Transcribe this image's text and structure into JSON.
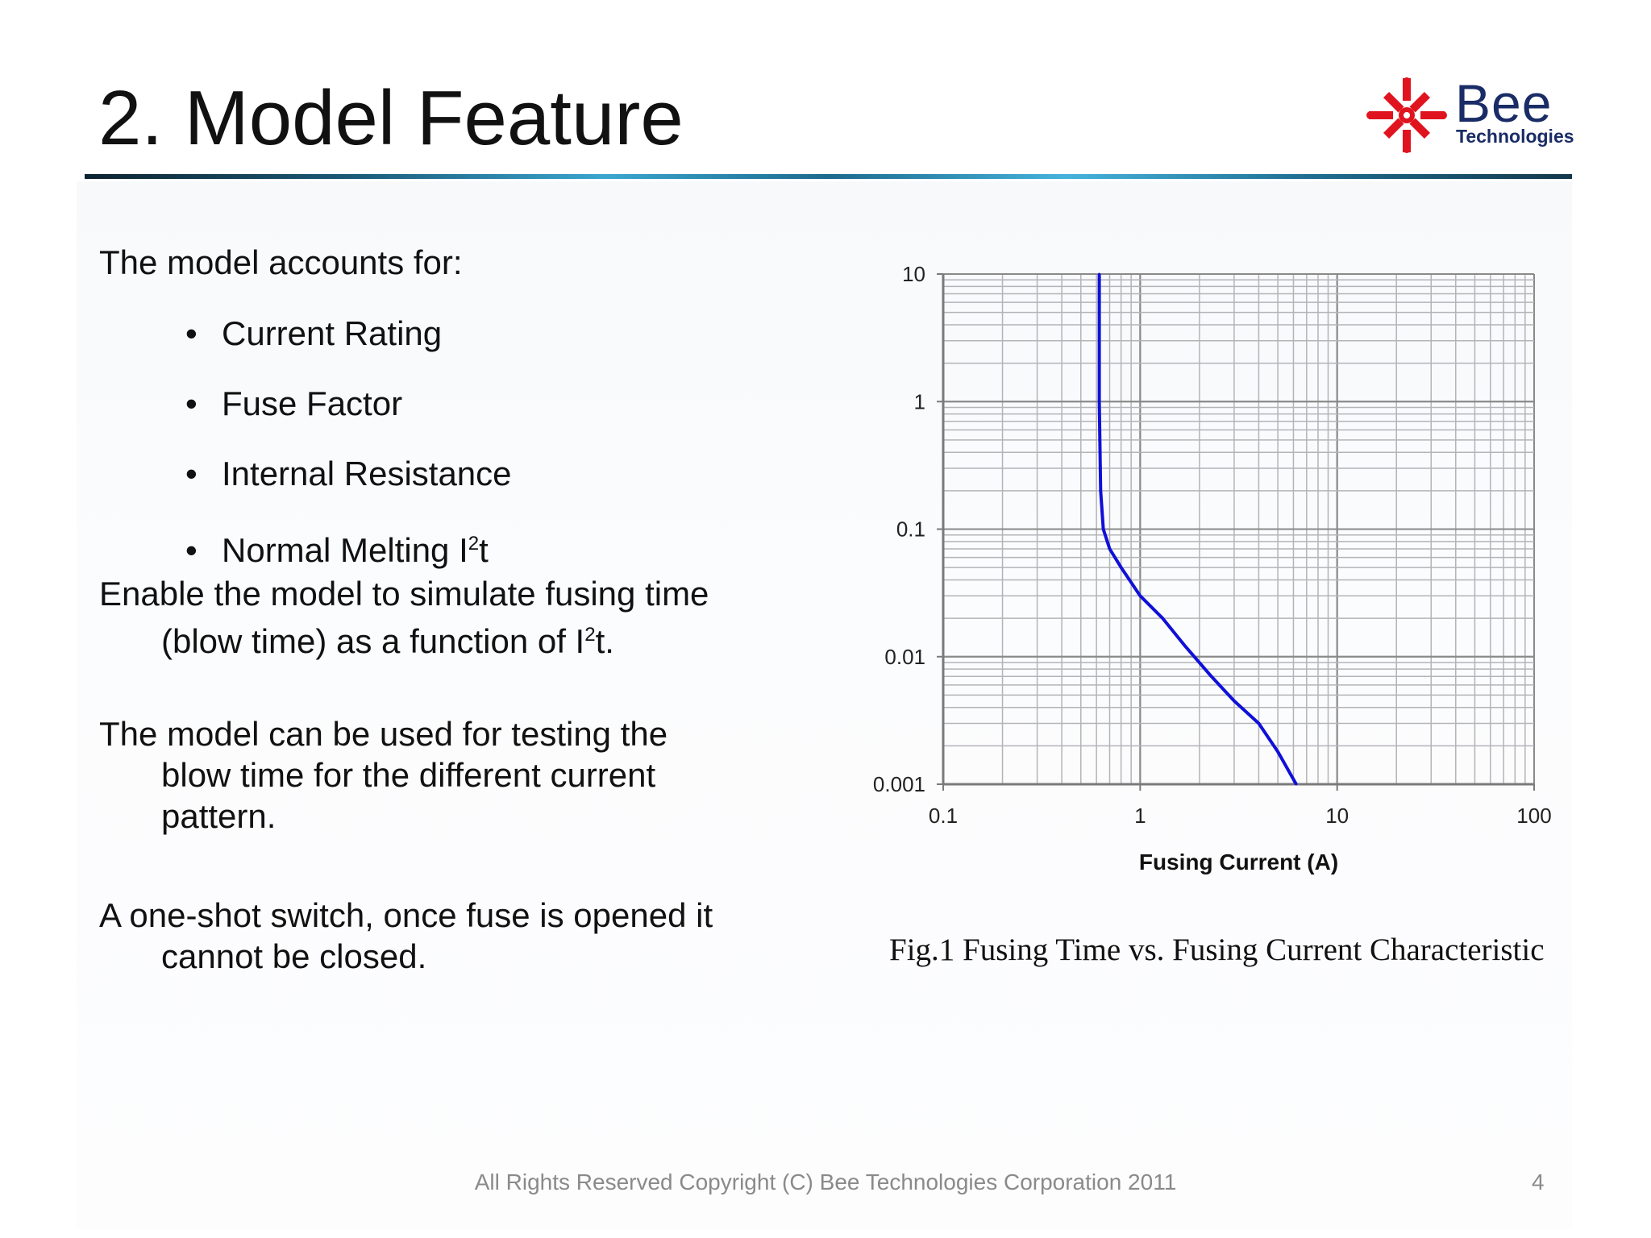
{
  "slide": {
    "title": "2. Model Feature",
    "logo": {
      "word": "Bee",
      "sub": "Technologies",
      "mark_color": "#e0141e",
      "text_color": "#1a2c66"
    },
    "intro": "The model accounts for:",
    "bullets": [
      "Current Rating",
      "Fuse Factor",
      "Internal Resistance",
      "Normal Melting I"
    ],
    "bullet_char": "•",
    "bullet_sup": "2",
    "bullet_tail": "t",
    "p1": {
      "line1": "Enable the model to simulate fusing time",
      "line2_pre": "(blow time) as a function of I",
      "sup": "2",
      "line2_post": "t."
    },
    "p2": {
      "line1": "The model can be used for testing the",
      "line2": "blow time for the different current",
      "line3": "pattern."
    },
    "p3": {
      "line1": "A one-shot switch, once fuse is opened it",
      "line2": "cannot be closed."
    },
    "caption": "Fig.1 Fusing Time vs. Fusing Current Characteristic",
    "footer": "All Rights Reserved Copyright (C) Bee Technologies Corporation 2011",
    "page": "4"
  },
  "chart_data": {
    "type": "line",
    "title": "",
    "xlabel": "Fusing Current (A)",
    "ylabel": "",
    "x_scale": "log",
    "y_scale": "log",
    "xlim": [
      0.1,
      100
    ],
    "ylim": [
      0.001,
      10
    ],
    "x_ticks": [
      "0.1",
      "1",
      "10",
      "100"
    ],
    "y_ticks": [
      "0.001",
      "0.01",
      "0.1",
      "1",
      "10"
    ],
    "grid": true,
    "series": [
      {
        "color": "#1010d8",
        "x": [
          0.62,
          0.62,
          0.63,
          0.65,
          0.7,
          0.8,
          1.0,
          1.3,
          1.7,
          2.3,
          3.0,
          4.0,
          5.0,
          6.2
        ],
        "y": [
          10,
          1,
          0.2,
          0.1,
          0.07,
          0.05,
          0.03,
          0.02,
          0.012,
          0.007,
          0.0045,
          0.003,
          0.0018,
          0.001
        ]
      }
    ]
  }
}
